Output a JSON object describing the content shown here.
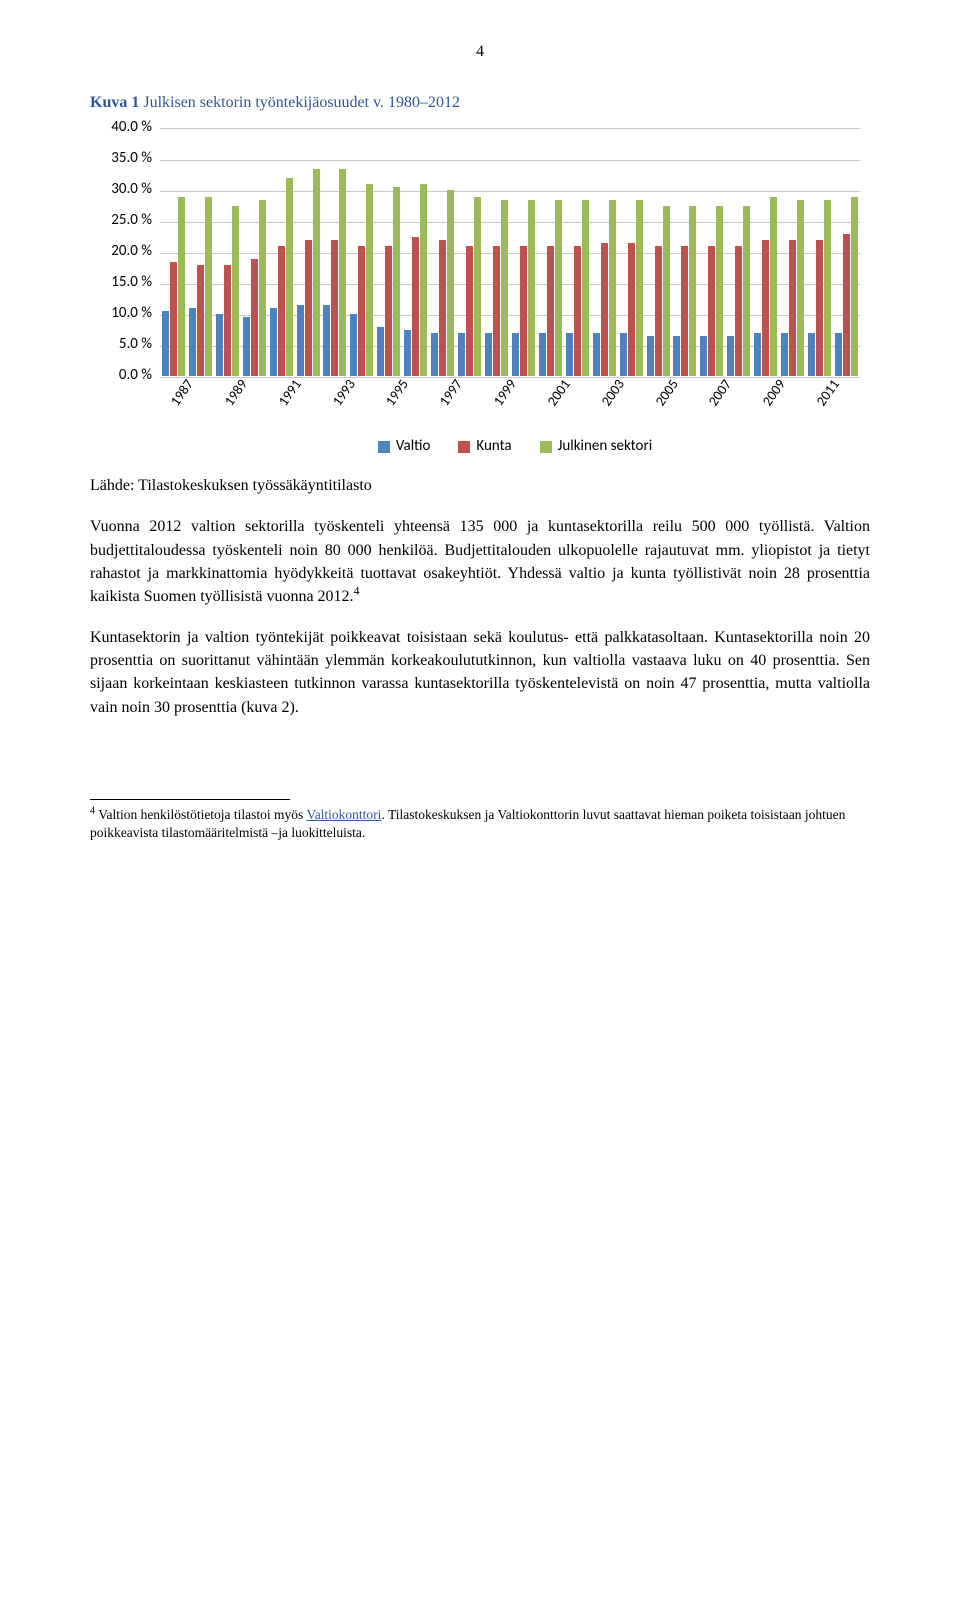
{
  "page_number": "4",
  "figure": {
    "title_prefix": "Kuva 1",
    "title_rest": " Julkisen sektorin työntekijäosuudet v. 1980–2012",
    "title_color": "#2f5597",
    "chart": {
      "type": "bar",
      "ylim": [
        0,
        40
      ],
      "ytick_step": 5,
      "y_suffix": " %",
      "y_decimals": 1,
      "grid_color": "#c9c9c9",
      "background_color": "#ffffff",
      "series": [
        {
          "name": "Valtio",
          "color": "#4f81bd",
          "values": [
            10.5,
            11,
            10,
            9.5,
            11,
            11.5,
            11.5,
            10,
            8,
            7.5,
            7,
            7,
            7,
            7,
            7,
            7,
            7,
            7,
            6.5,
            6.5,
            6.5,
            6.5,
            7,
            7,
            7,
            7
          ]
        },
        {
          "name": "Kunta",
          "color": "#c0504d",
          "values": [
            18.5,
            18,
            18,
            19,
            21,
            22,
            22,
            21,
            21,
            22.5,
            22,
            21,
            21,
            21,
            21,
            21,
            21.5,
            21.5,
            21,
            21,
            21,
            21,
            22,
            22,
            22,
            23
          ]
        },
        {
          "name": "Julkinen sektori",
          "color": "#9bbb59",
          "values": [
            29,
            29,
            27.5,
            28.5,
            32,
            33.5,
            33.5,
            31,
            30.5,
            31,
            30,
            29,
            28.5,
            28.5,
            28.5,
            28.5,
            28.5,
            28.5,
            27.5,
            27.5,
            27.5,
            27.5,
            29,
            28.5,
            28.5,
            29
          ]
        }
      ],
      "categories": [
        "1987",
        "",
        "1989",
        "",
        "1991",
        "",
        "1993",
        "",
        "1995",
        "",
        "1997",
        "",
        "1999",
        "",
        "2001",
        "",
        "2003",
        "",
        "2005",
        "",
        "2007",
        "",
        "2009",
        "",
        "2011",
        ""
      ],
      "label_fontfamily": "Calibri",
      "label_fontsize": 15
    }
  },
  "source_label": "Lähde: Tilastokeskuksen työssäkäyntitilasto",
  "paragraphs": {
    "p1_a": "Vuonna 2012 valtion sektorilla työskenteli yhteensä 135 000 ja kuntasektorilla reilu 500 000 työllistä. Valtion budjettitaloudessa työskenteli noin 80 000 henkilöä. Budjettitalouden ulkopuolelle rajautuvat mm. yliopistot ja tietyt rahastot ja markkinattomia hyödykkeitä tuottavat osakeyhtiöt. Yhdessä valtio ja kunta työllistivät noin 28 prosenttia kaikista Suomen työllisistä vuonna 2012.",
    "p1_sup": "4",
    "p2": "Kuntasektorin ja valtion työntekijät poikkeavat toisistaan sekä koulutus- että palkkatasoltaan. Kuntasektorilla noin 20 prosenttia on suorittanut vähintään ylemmän korkeakoulututkinnon, kun valtiolla vastaava luku on 40 prosenttia. Sen sijaan korkeintaan keskiasteen tutkinnon varassa kuntasektorilla työskentelevistä on noin 47 prosenttia, mutta valtiolla vain noin 30 prosenttia (kuva 2)."
  },
  "footnote": {
    "marker": "4",
    "text_before_link": " Valtion henkilöstötietoja tilastoi myös ",
    "link_text": "Valtiokonttori",
    "link_color": "#2f5597",
    "text_after_link": ". Tilastokeskuksen ja Valtiokonttorin luvut saattavat hieman poiketa toisistaan johtuen poikkeavista tilastomääritelmistä –ja luokitteluista."
  }
}
